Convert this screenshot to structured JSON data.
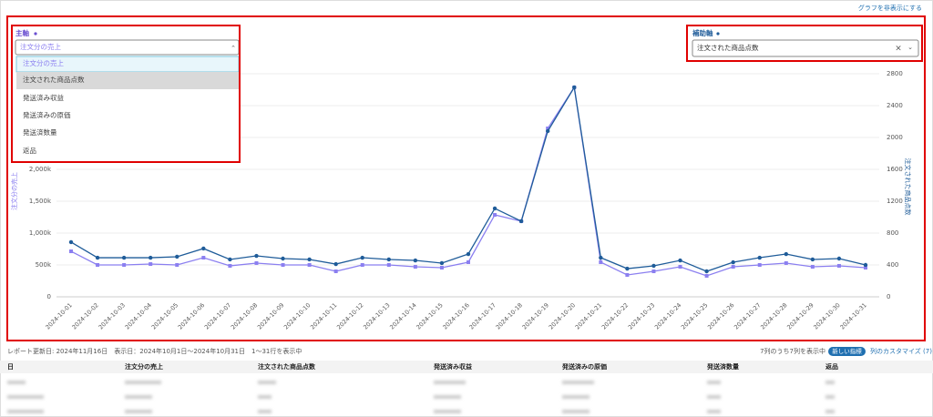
{
  "ui": {
    "hide_link": "グラフを非表示にする",
    "primary_label": "主軸",
    "secondary_label": "補助軸",
    "options": [
      "注文分の売上",
      "注文された商品点数",
      "発送済み収益",
      "発送済みの原価",
      "発送済数量",
      "返品"
    ],
    "status": "レポート更新日: 2024年11月16日　表示日：2024年10月1日〜2024年10月31日　1〜31行を表示中",
    "columns_shown": "7列のうち7列を表示中",
    "new_badge": "新しい指標",
    "customize": "列のカスタマイズ (7)"
  },
  "table": {
    "headers": [
      "日",
      "注文分の売上",
      "注文された商品点数",
      "発送済み収益",
      "発送済みの原価",
      "発送済数量",
      "返品"
    ]
  },
  "chart_data": {
    "type": "line",
    "ylabel": "注文分の売上",
    "y2label": "注文された商品点数",
    "categories": [
      "2024-10-01",
      "2024-10-02",
      "2024-10-03",
      "2024-10-04",
      "2024-10-05",
      "2024-10-06",
      "2024-10-07",
      "2024-10-08",
      "2024-10-09",
      "2024-10-10",
      "2024-10-11",
      "2024-10-12",
      "2024-10-13",
      "2024-10-14",
      "2024-10-15",
      "2024-10-16",
      "2024-10-17",
      "2024-10-18",
      "2024-10-19",
      "2024-10-20",
      "2024-10-21",
      "2024-10-22",
      "2024-10-23",
      "2024-10-24",
      "2024-10-25",
      "2024-10-26",
      "2024-10-27",
      "2024-10-28",
      "2024-10-29",
      "2024-10-30",
      "2024-10-31"
    ],
    "series": [
      {
        "name": "注文分の売上",
        "color": "#8b7ff0",
        "axis": "y",
        "values": [
          714000,
          500000,
          500000,
          514000,
          500000,
          614000,
          486000,
          529000,
          500000,
          500000,
          400000,
          500000,
          500000,
          471000,
          457000,
          543000,
          1286000,
          1186000,
          2643000,
          3286000,
          543000,
          343000,
          400000,
          471000,
          329000,
          471000,
          500000,
          529000,
          471000,
          486000,
          457000
        ]
      },
      {
        "name": "注文された商品点数",
        "color": "#1f5c99",
        "axis": "y2",
        "values": [
          686,
          491,
          491,
          491,
          503,
          606,
          469,
          514,
          480,
          469,
          411,
          491,
          469,
          457,
          423,
          537,
          1109,
          949,
          2080,
          2629,
          491,
          354,
          389,
          457,
          320,
          434,
          491,
          537,
          469,
          480,
          400
        ]
      }
    ],
    "ylim": [
      0,
      3500000
    ],
    "yticks": [
      0,
      {
        "value": 500000,
        "label": "500k"
      },
      {
        "value": 1000000,
        "label": "1,000k"
      },
      {
        "value": 1500000,
        "label": "1,500k"
      },
      {
        "value": 2000000,
        "label": "2,000k"
      }
    ],
    "y2lim": [
      0,
      2800
    ],
    "y2ticks": [
      0,
      400,
      800,
      1200,
      1600,
      2000,
      2400,
      2800
    ],
    "grid": true
  }
}
